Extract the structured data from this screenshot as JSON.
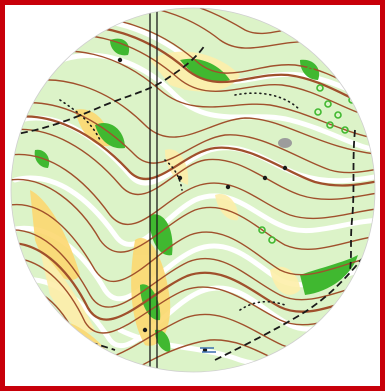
{
  "map": {
    "kind": "orienteering-map-excerpt",
    "shape": "circle",
    "has_north_lines": true,
    "colors": {
      "frame": "#c8000a",
      "background": "#ffffff",
      "open_land": "#ffffff",
      "light_green_vegetation": "#dcf3c8",
      "vegetation_green": "#40b830",
      "rough_open_yellow": "#fcd870",
      "pale_yellow": "#fdeeaa",
      "contour_brown": "#a0502c",
      "north_line": "#1a1a1a",
      "track_black": "#1a1a1a",
      "rock_grey": "#9c9c9c",
      "marsh_blue": "#3b6fb0"
    },
    "features": [
      "contours",
      "north-lines",
      "tracks",
      "dot-knolls",
      "vegetation",
      "rough-open",
      "bushes",
      "boulder"
    ]
  }
}
